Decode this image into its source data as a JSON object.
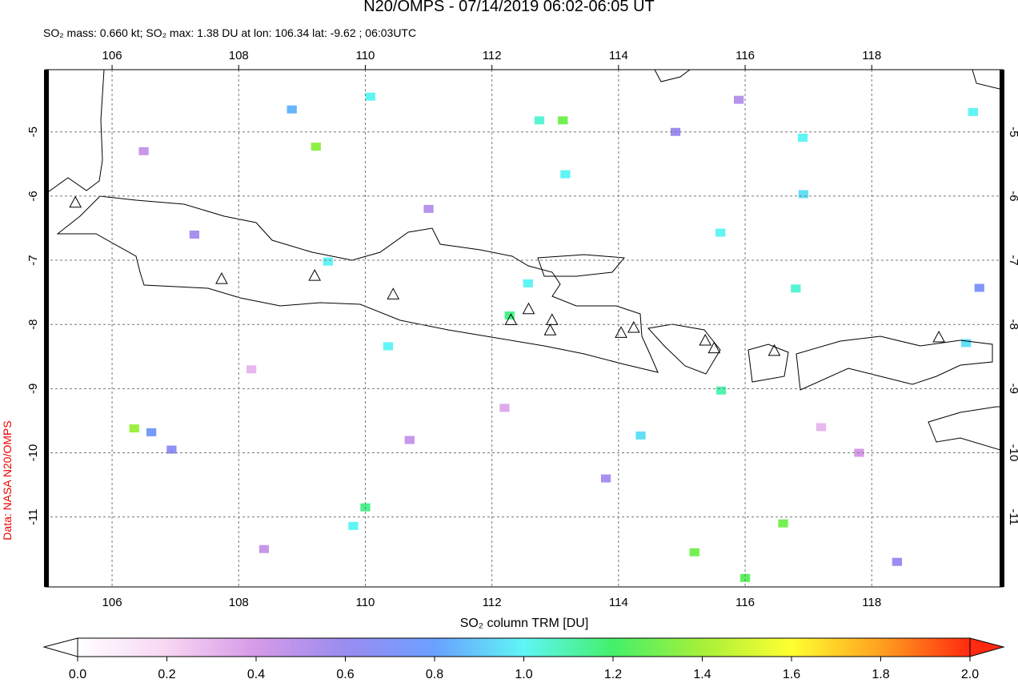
{
  "chart_data": {
    "type": "map",
    "title": "N20/OMPS - 07/14/2019 06:02-06:05 UT",
    "subtitle": "SO₂ mass: 0.660 kt; SO₂ max: 1.38 DU at lon: 106.34 lat: -9.62 ; 06:03UTC",
    "credit": "Data: NASA N20/OMPS",
    "colorbar_label": "SO₂ column TRM [DU]",
    "xlim": [
      104.95,
      120.07
    ],
    "ylim": [
      -12.09,
      -4.03
    ],
    "xticks": [
      106,
      108,
      110,
      112,
      114,
      116,
      118
    ],
    "yticks": [
      -5,
      -6,
      -7,
      -8,
      -9,
      -10,
      -11
    ],
    "grid": true,
    "clim": [
      0,
      2
    ],
    "cticks": [
      {
        "value": 0,
        "label": "0.0"
      },
      {
        "value": 0.2,
        "label": "0.2"
      },
      {
        "value": 0.4,
        "label": "0.4"
      },
      {
        "value": 0.6,
        "label": "0.6"
      },
      {
        "value": 0.8,
        "label": "0.8"
      },
      {
        "value": 1,
        "label": "1.0"
      },
      {
        "value": 1.2,
        "label": "1.2"
      },
      {
        "value": 1.4,
        "label": "1.4"
      },
      {
        "value": 1.6,
        "label": "1.6"
      },
      {
        "value": 1.8,
        "label": "1.8"
      },
      {
        "value": 2,
        "label": "2.0"
      }
    ],
    "colormap": [
      "#ffffff",
      "#f7d6f2",
      "#d69ae8",
      "#9a8cf0",
      "#6aa0ff",
      "#5ff5f5",
      "#44f06a",
      "#a6f03a",
      "#ffff30",
      "#ffa020",
      "#ff2a10"
    ],
    "pixels": {
      "lon": [
        109.22,
        113.12,
        112.75,
        106.35,
        110.0,
        116.6,
        115.2,
        116.0,
        119.6,
        115.61,
        116.8,
        112.28,
        112.57,
        113.16,
        110.08,
        108.84,
        115.62,
        114.35,
        119.49,
        110.36,
        109.41,
        109.81,
        116.91,
        116.92,
        106.62,
        106.94,
        119.7,
        108.4,
        111.0,
        113.8,
        117.8,
        106.5,
        118.4,
        114.9,
        112.2,
        108.2,
        115.9,
        117.2,
        107.3,
        110.7
      ],
      "lat": [
        -5.23,
        -4.82,
        -4.82,
        -9.62,
        -10.85,
        -11.1,
        -11.55,
        -11.95,
        -4.69,
        -6.57,
        -7.44,
        -7.86,
        -7.36,
        -5.66,
        -4.45,
        -4.65,
        -9.03,
        -9.73,
        -8.29,
        -8.34,
        -7.02,
        -11.14,
        -5.09,
        -5.97,
        -9.68,
        -9.95,
        -7.43,
        -11.5,
        -6.2,
        -10.4,
        -10.0,
        -5.3,
        -11.7,
        -5.0,
        -9.3,
        -8.7,
        -4.5,
        -9.6,
        -6.6,
        -9.8
      ],
      "values": [
        1.35,
        1.3,
        1.05,
        1.38,
        1.15,
        1.3,
        1.3,
        1.25,
        1.0,
        1.0,
        1.05,
        1.15,
        1.0,
        1.0,
        1.0,
        0.85,
        1.1,
        0.95,
        0.95,
        1.0,
        1.0,
        1.0,
        1.0,
        0.95,
        0.75,
        0.65,
        0.7,
        0.45,
        0.5,
        0.55,
        0.4,
        0.45,
        0.6,
        0.6,
        0.35,
        0.3,
        0.5,
        0.3,
        0.55,
        0.45
      ]
    },
    "volcanoes": {
      "lon": [
        105.42,
        107.73,
        109.2,
        110.44,
        112.3,
        112.58,
        112.95,
        112.92,
        114.04,
        114.24,
        115.37,
        115.51,
        116.46,
        119.06
      ],
      "lat": [
        -6.11,
        -7.3,
        -7.25,
        -7.54,
        -7.94,
        -7.77,
        -7.94,
        -8.1,
        -8.14,
        -8.06,
        -8.26,
        -8.38,
        -8.42,
        -8.21
      ]
    }
  }
}
